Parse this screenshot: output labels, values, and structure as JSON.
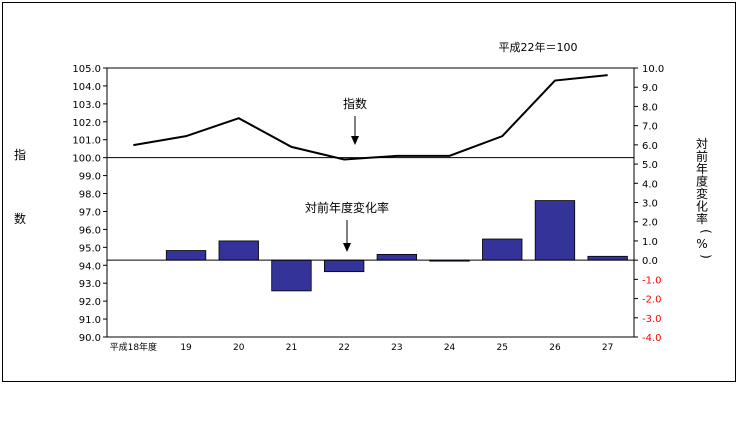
{
  "chart_data": {
    "type": "bar+line",
    "base_note": "平成22年＝100",
    "left_axis_label_chars": [
      "指",
      "数"
    ],
    "right_axis_label_chars": [
      "対",
      "前",
      "年",
      "度",
      "変",
      "化",
      "率",
      "(",
      "%",
      ")"
    ],
    "categories": [
      "平成18年度",
      "19",
      "20",
      "21",
      "22",
      "23",
      "24",
      "25",
      "26",
      "27"
    ],
    "left_axis": {
      "min": 90.0,
      "max": 105.0,
      "step": 1.0,
      "ticks": [
        "90.0",
        "91.0",
        "92.0",
        "93.0",
        "94.0",
        "95.0",
        "96.0",
        "97.0",
        "98.0",
        "99.0",
        "100.0",
        "101.0",
        "102.0",
        "103.0",
        "104.0",
        "105.0"
      ]
    },
    "right_axis": {
      "min": -4.0,
      "max": 10.0,
      "step": 1.0,
      "ticks": [
        "-4.0",
        "-3.0",
        "-2.0",
        "-1.0",
        "0.0",
        "1.0",
        "2.0",
        "3.0",
        "4.0",
        "5.0",
        "6.0",
        "7.0",
        "8.0",
        "9.0",
        "10.0"
      ],
      "negative_color": "#ff0000"
    },
    "series": [
      {
        "name": "指数",
        "kind": "line",
        "axis": "left",
        "color": "#000000",
        "values": [
          100.7,
          101.2,
          102.2,
          100.6,
          99.9,
          100.1,
          100.1,
          101.2,
          104.3,
          104.6
        ]
      },
      {
        "name": "対前年度変化率",
        "kind": "bar",
        "axis": "right",
        "color": "#333399",
        "values": [
          null,
          0.5,
          1.0,
          -1.6,
          -0.6,
          0.3,
          0.0,
          1.1,
          3.1,
          0.2
        ]
      }
    ],
    "reference_line_left": 100.0,
    "annotations": [
      {
        "text": "指数",
        "target_series": "指数"
      },
      {
        "text": "対前年度変化率",
        "target_series": "対前年度変化率"
      }
    ]
  }
}
